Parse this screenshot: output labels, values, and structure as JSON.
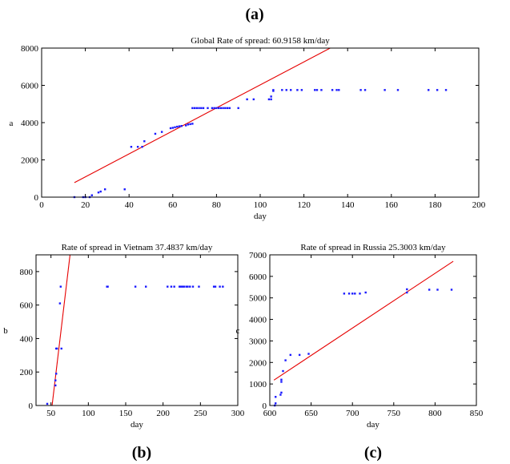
{
  "labels": {
    "a": "(a)",
    "b": "(b)",
    "c": "(c)"
  },
  "colors": {
    "points": "#1a1aff",
    "fit": "#e60000"
  },
  "chart_data": [
    {
      "id": "a",
      "type": "scatter",
      "title": "Global Rate of spread: 60.9158 km/day",
      "xlabel": "day",
      "ylabel": "a",
      "xlim": [
        0,
        200
      ],
      "ylim": [
        0,
        8000
      ],
      "xticks": [
        0,
        20,
        40,
        60,
        80,
        100,
        120,
        140,
        160,
        180,
        200
      ],
      "yticks": [
        0,
        2000,
        4000,
        6000,
        8000
      ],
      "fit_line": {
        "x": [
          15,
          132
        ],
        "y": [
          780,
          8000
        ]
      },
      "points": [
        [
          15,
          0
        ],
        [
          19,
          0
        ],
        [
          20,
          0
        ],
        [
          22,
          0
        ],
        [
          23,
          100
        ],
        [
          26,
          250
        ],
        [
          27,
          300
        ],
        [
          29,
          420
        ],
        [
          38,
          420
        ],
        [
          41,
          2700
        ],
        [
          44,
          2700
        ],
        [
          46,
          2700
        ],
        [
          47,
          3000
        ],
        [
          52,
          3400
        ],
        [
          55,
          3500
        ],
        [
          59,
          3700
        ],
        [
          60,
          3720
        ],
        [
          61,
          3750
        ],
        [
          62,
          3780
        ],
        [
          63,
          3800
        ],
        [
          64,
          3820
        ],
        [
          66,
          3850
        ],
        [
          67,
          3900
        ],
        [
          68,
          3920
        ],
        [
          69,
          3940
        ],
        [
          69,
          4780
        ],
        [
          70,
          4780
        ],
        [
          71,
          4780
        ],
        [
          72,
          4780
        ],
        [
          73,
          4780
        ],
        [
          74,
          4780
        ],
        [
          76,
          4780
        ],
        [
          78,
          4780
        ],
        [
          79,
          4780
        ],
        [
          80,
          4780
        ],
        [
          81,
          4780
        ],
        [
          82,
          4780
        ],
        [
          83,
          4780
        ],
        [
          84,
          4780
        ],
        [
          85,
          4780
        ],
        [
          86,
          4780
        ],
        [
          90,
          4780
        ],
        [
          94,
          5250
        ],
        [
          97,
          5250
        ],
        [
          104,
          5250
        ],
        [
          105,
          5250
        ],
        [
          105,
          5400
        ],
        [
          106,
          5700
        ],
        [
          106,
          5750
        ],
        [
          110,
          5750
        ],
        [
          112,
          5750
        ],
        [
          114,
          5750
        ],
        [
          117,
          5750
        ],
        [
          119,
          5750
        ],
        [
          125,
          5750
        ],
        [
          126,
          5750
        ],
        [
          128,
          5750
        ],
        [
          133,
          5750
        ],
        [
          135,
          5750
        ],
        [
          136,
          5750
        ],
        [
          146,
          5750
        ],
        [
          148,
          5750
        ],
        [
          157,
          5750
        ],
        [
          163,
          5750
        ],
        [
          177,
          5750
        ],
        [
          181,
          5750
        ],
        [
          185,
          5750
        ]
      ]
    },
    {
      "id": "b",
      "type": "scatter",
      "title": "Rate of spread in Vietnam 37.4837 km/day",
      "xlabel": "day",
      "ylabel": "b",
      "xlim": [
        30,
        300
      ],
      "ylim": [
        0,
        900
      ],
      "xticks": [
        50,
        100,
        150,
        200,
        250,
        300
      ],
      "yticks": [
        0,
        200,
        400,
        600,
        800
      ],
      "fit_line": {
        "x": [
          51.5,
          75.5
        ],
        "y": [
          0,
          900
        ]
      },
      "points": [
        [
          45,
          10
        ],
        [
          56,
          120
        ],
        [
          56,
          150
        ],
        [
          57,
          190
        ],
        [
          57,
          340
        ],
        [
          58,
          340
        ],
        [
          62,
          610
        ],
        [
          63,
          710
        ],
        [
          64,
          340
        ],
        [
          125,
          710
        ],
        [
          126,
          710
        ],
        [
          163,
          710
        ],
        [
          177,
          710
        ],
        [
          206,
          710
        ],
        [
          211,
          710
        ],
        [
          215,
          710
        ],
        [
          222,
          710
        ],
        [
          224,
          710
        ],
        [
          226,
          710
        ],
        [
          228,
          710
        ],
        [
          231,
          710
        ],
        [
          233,
          710
        ],
        [
          236,
          710
        ],
        [
          240,
          710
        ],
        [
          248,
          710
        ],
        [
          268,
          710
        ],
        [
          270,
          710
        ],
        [
          276,
          710
        ],
        [
          280,
          710
        ]
      ]
    },
    {
      "id": "c",
      "type": "scatter",
      "title": "Rate of spread in Russia 25.3003 km/day",
      "xlabel": "day",
      "ylabel": "c",
      "xlim": [
        600,
        850
      ],
      "ylim": [
        0,
        7000
      ],
      "xticks": [
        600,
        650,
        700,
        750,
        800,
        850
      ],
      "yticks": [
        0,
        1000,
        2000,
        3000,
        4000,
        5000,
        6000,
        7000
      ],
      "fit_line": {
        "x": [
          605,
          822
        ],
        "y": [
          1180,
          6700
        ]
      },
      "points": [
        [
          606,
          0
        ],
        [
          607,
          100
        ],
        [
          607,
          400
        ],
        [
          613,
          500
        ],
        [
          614,
          600
        ],
        [
          614,
          1100
        ],
        [
          614,
          1200
        ],
        [
          616,
          1600
        ],
        [
          619,
          2100
        ],
        [
          625,
          2350
        ],
        [
          636,
          2350
        ],
        [
          647,
          2400
        ],
        [
          690,
          5200
        ],
        [
          696,
          5200
        ],
        [
          700,
          5200
        ],
        [
          703,
          5200
        ],
        [
          709,
          5200
        ],
        [
          716,
          5250
        ],
        [
          766,
          5250
        ],
        [
          766,
          5400
        ],
        [
          793,
          5380
        ],
        [
          803,
          5380
        ],
        [
          820,
          5380
        ]
      ]
    }
  ]
}
